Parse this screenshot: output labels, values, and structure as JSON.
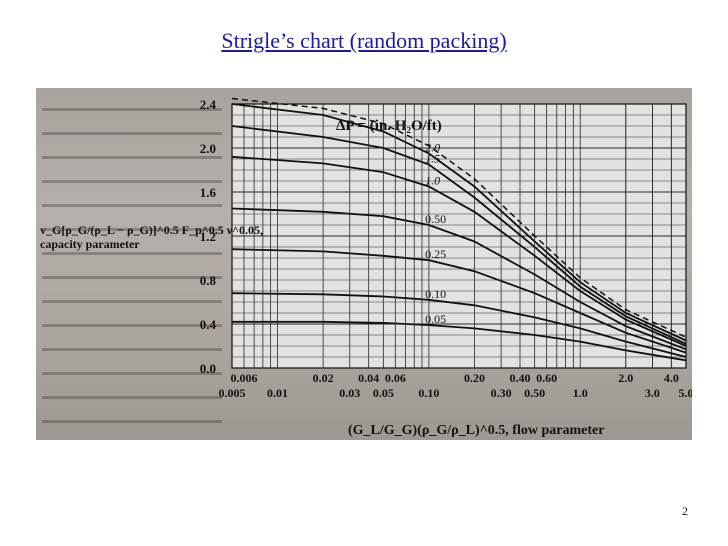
{
  "slide": {
    "title": "Strigle’s chart (random packing)",
    "page_number": "2"
  },
  "chart_data": {
    "type": "line",
    "title": "ΔP = (in. H₂O/ft)",
    "xlabel": "(G_L/G_G)(ρ_G/ρ_L)^0.5, flow parameter",
    "ylabel_lines": [
      "v_G[ρ_G/(ρ_L − ρ_G)]^0.5 F_p^0.5 ν^0.05,",
      "capacity parameter"
    ],
    "x_scale": "log",
    "xlim": [
      0.005,
      5.0
    ],
    "ylim": [
      0,
      2.4
    ],
    "grid": true,
    "x_ticks_upper": [
      "0.006",
      "0.02",
      "0.04",
      "0.06",
      "0.20",
      "0.40",
      "0.60",
      "2.0",
      "4.0"
    ],
    "x_ticks_lower": [
      "0.005",
      "0.01",
      "0.03",
      "0.05",
      "0.10",
      "0.30",
      "0.50",
      "1.0",
      "3.0",
      "5.0"
    ],
    "y_ticks": [
      "0.0",
      "0.4",
      "0.8",
      "1.2",
      "1.6",
      "2.0",
      "2.4"
    ],
    "series": [
      {
        "name": "2.0",
        "x": [
          0.005,
          0.02,
          0.05,
          0.1,
          0.2,
          0.5,
          1.0,
          2.0,
          5.0
        ],
        "values": [
          2.4,
          2.3,
          2.15,
          1.95,
          1.65,
          1.15,
          0.78,
          0.5,
          0.25
        ]
      },
      {
        "name": "1.5",
        "x": [
          0.005,
          0.02,
          0.05,
          0.1,
          0.2,
          0.5,
          1.0,
          2.0,
          5.0
        ],
        "values": [
          2.2,
          2.1,
          2.0,
          1.85,
          1.55,
          1.1,
          0.74,
          0.47,
          0.22
        ]
      },
      {
        "name": "1.0",
        "x": [
          0.005,
          0.02,
          0.05,
          0.1,
          0.2,
          0.5,
          1.0,
          2.0,
          5.0
        ],
        "values": [
          1.92,
          1.86,
          1.78,
          1.65,
          1.42,
          1.02,
          0.7,
          0.44,
          0.2
        ]
      },
      {
        "name": "0.50",
        "x": [
          0.005,
          0.02,
          0.05,
          0.1,
          0.2,
          0.5,
          1.0,
          2.0,
          5.0
        ],
        "values": [
          1.45,
          1.42,
          1.38,
          1.3,
          1.15,
          0.85,
          0.6,
          0.38,
          0.17
        ]
      },
      {
        "name": "0.25",
        "x": [
          0.005,
          0.02,
          0.05,
          0.1,
          0.2,
          0.5,
          1.0,
          2.0,
          5.0
        ],
        "values": [
          1.08,
          1.06,
          1.02,
          0.98,
          0.88,
          0.68,
          0.5,
          0.32,
          0.14
        ]
      },
      {
        "name": "0.10",
        "x": [
          0.005,
          0.02,
          0.05,
          0.1,
          0.2,
          0.5,
          1.0,
          2.0,
          5.0
        ],
        "values": [
          0.68,
          0.67,
          0.65,
          0.62,
          0.57,
          0.46,
          0.36,
          0.24,
          0.1
        ]
      },
      {
        "name": "0.05",
        "x": [
          0.005,
          0.02,
          0.05,
          0.1,
          0.2,
          0.5,
          1.0,
          2.0,
          5.0
        ],
        "values": [
          0.42,
          0.42,
          0.41,
          0.39,
          0.36,
          0.3,
          0.24,
          0.16,
          0.07
        ]
      }
    ],
    "flood_line": {
      "x": [
        0.005,
        0.02,
        0.05,
        0.1,
        0.2,
        0.5,
        1.0,
        2.0,
        5.0
      ],
      "values": [
        2.45,
        2.36,
        2.22,
        2.02,
        1.72,
        1.2,
        0.82,
        0.53,
        0.28
      ]
    },
    "line_style": {
      "series": "solid",
      "flood_line": "dashed"
    }
  }
}
